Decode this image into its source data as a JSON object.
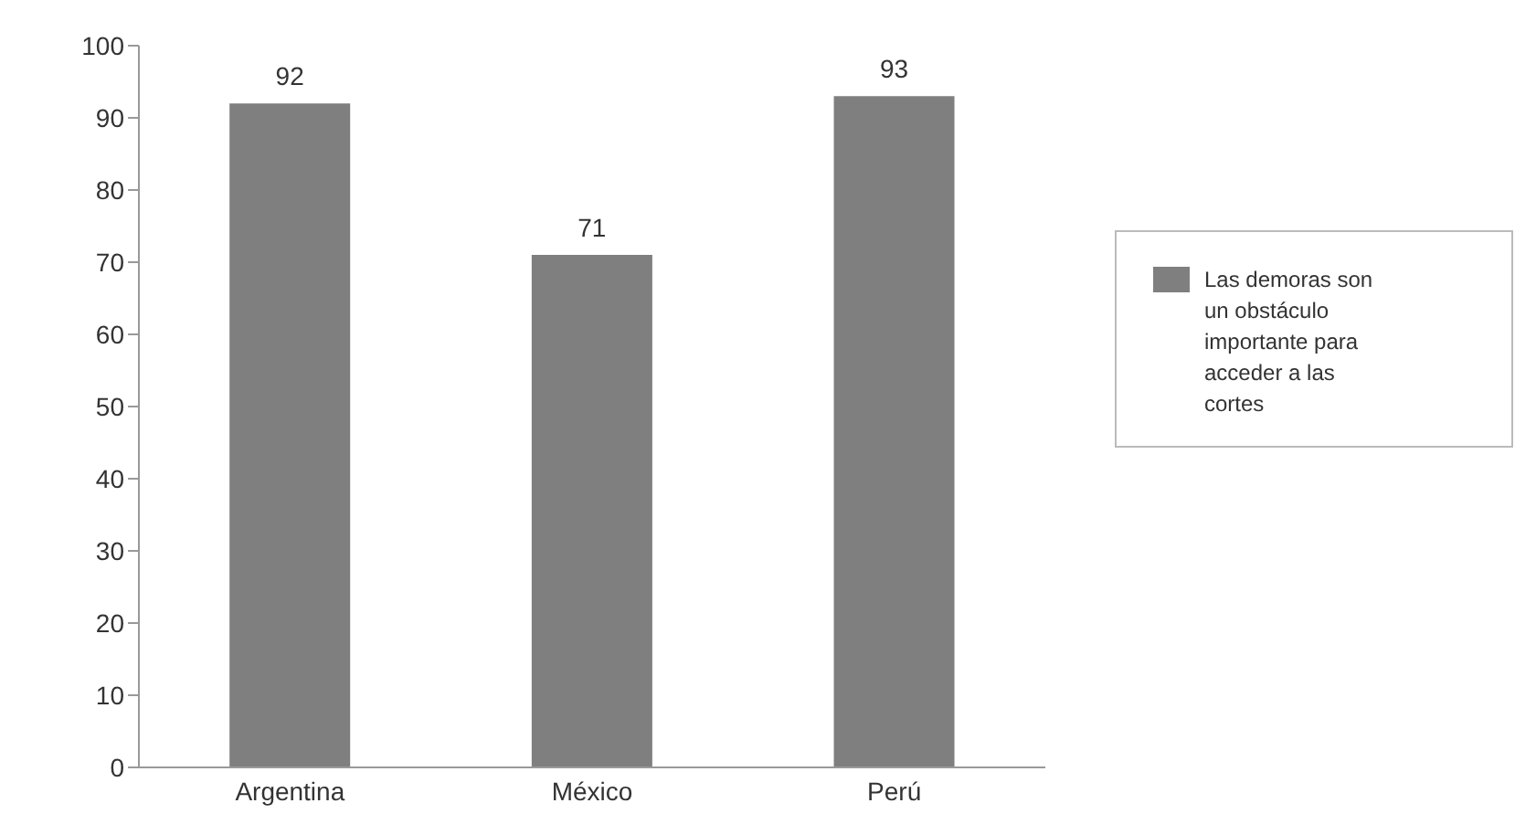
{
  "chart_data": {
    "type": "bar",
    "categories": [
      "Argentina",
      "México",
      "Perú"
    ],
    "series": [
      {
        "name": "Las demoras son un obstáculo importante para acceder a las cortes",
        "color": "#7f7f7f",
        "values": [
          92,
          71,
          93
        ]
      }
    ],
    "ylim": [
      0,
      100
    ],
    "yticks": [
      0,
      10,
      20,
      30,
      40,
      50,
      60,
      70,
      80,
      90,
      100
    ],
    "data_labels": true,
    "legend": "right",
    "grid": false
  }
}
